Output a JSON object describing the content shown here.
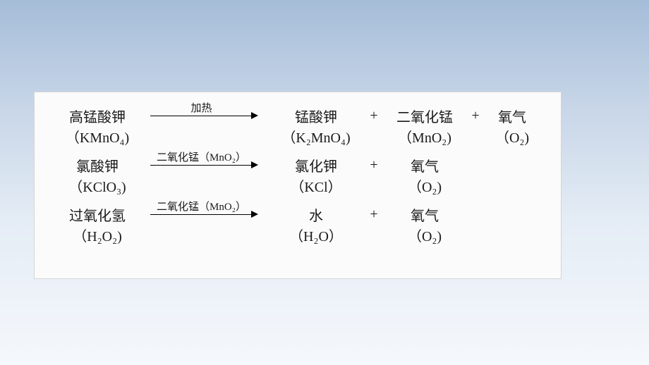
{
  "panel": {
    "background_color": "#fbfbfb",
    "border_color": "#d5d5d5",
    "text_color": "#1a1a1a"
  },
  "page_background_gradient": [
    "#a5bdd8",
    "#c8d6e8",
    "#e4ecf5",
    "#f5f8fc"
  ],
  "reactions": [
    {
      "reactant_name": "高锰酸钾",
      "reactant_formula": "（KMnO₄)",
      "arrow_label": "加热",
      "products": [
        {
          "name": "锰酸钾",
          "formula": "（K₂MnO₄)"
        },
        {
          "name": "二氧化锰",
          "formula": "（MnO₂)"
        },
        {
          "name": "氧气",
          "formula": "（O₂)"
        }
      ]
    },
    {
      "reactant_name": "氯酸钾",
      "reactant_formula": "（KClO₃)",
      "arrow_label": "二氧化锰（MnO₂）",
      "products": [
        {
          "name": "氯化钾",
          "formula": "（KCl）"
        },
        {
          "name": "氧气",
          "formula": "（O₂)"
        }
      ]
    },
    {
      "reactant_name": "过氧化氢",
      "reactant_formula": "（H₂O₂)",
      "arrow_label": "二氧化锰（MnO₂）",
      "products": [
        {
          "name": "水",
          "formula": "（H₂O）"
        },
        {
          "name": "氧气",
          "formula": "（O₂)"
        }
      ]
    }
  ],
  "plus_symbol": "+"
}
